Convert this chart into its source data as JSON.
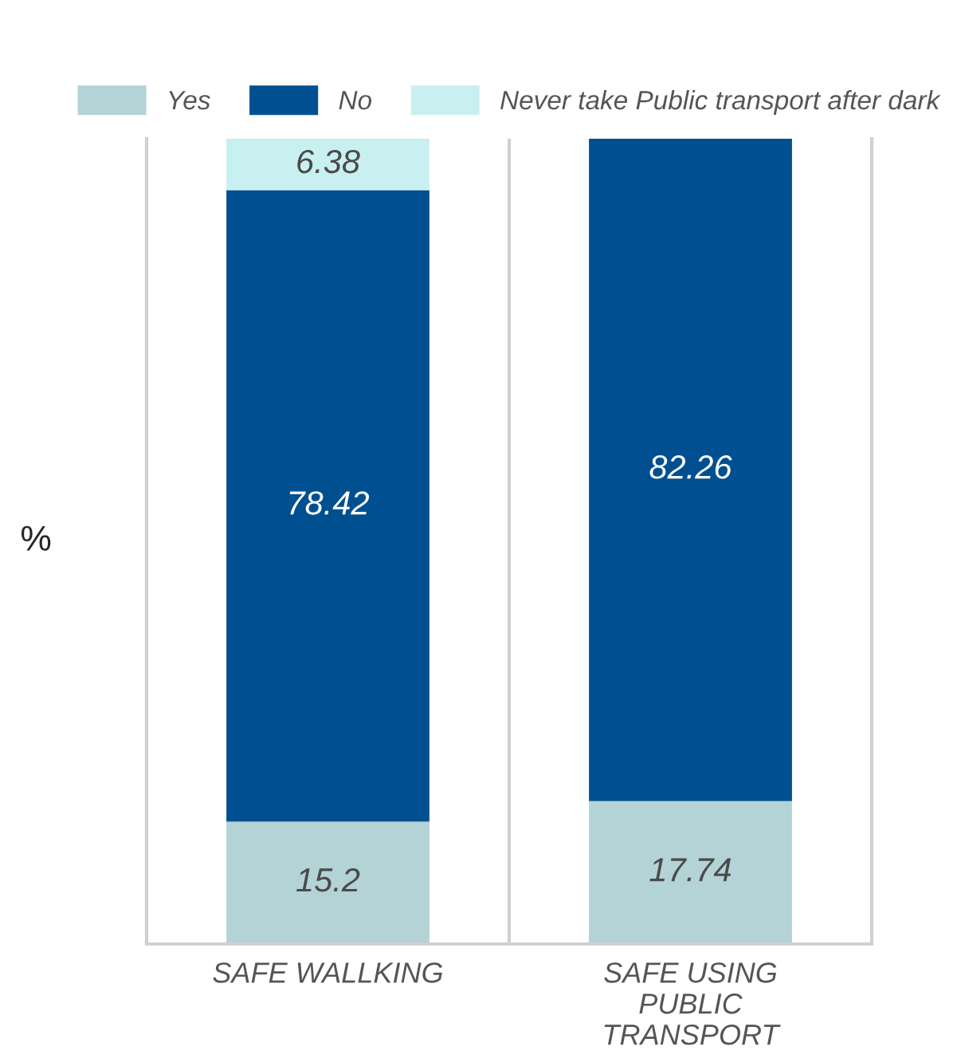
{
  "chart_data": {
    "type": "bar",
    "stacked": true,
    "ylabel": "%",
    "categories": [
      "SAFE WALLKING",
      "SAFE USING\nPUBLIC\nTRANSPORT"
    ],
    "series": [
      {
        "name": "Yes",
        "color": "#b3d3d6",
        "values": [
          15.2,
          17.74
        ]
      },
      {
        "name": "No",
        "color": "#005091",
        "values": [
          78.42,
          82.26
        ]
      },
      {
        "name": "Never take Public transport after dark",
        "color": "#c9f0f0",
        "values": [
          6.38,
          null
        ]
      }
    ],
    "ylim": [
      0,
      100
    ],
    "data_labels": true,
    "grid": "x",
    "legend": "top",
    "tick_labels": "x"
  }
}
